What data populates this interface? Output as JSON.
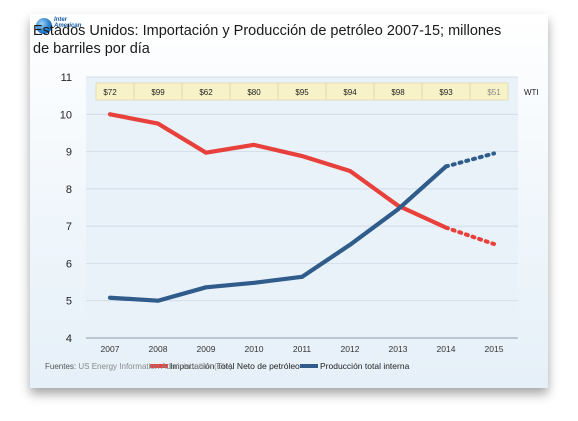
{
  "header": {
    "logo_text": "Inter\nAmerican",
    "title": "Estados Unidos: Importación y Producción de petróleo  2007-15; millones de barriles por día"
  },
  "source": {
    "label": "Fuentes:",
    "org": "US Energy Information Administration (EIA)"
  },
  "chart_data": {
    "type": "line",
    "title": "Estados Unidos: Importación y Producción de petróleo  2007-15; millones de barriles por día",
    "x": [
      "2007",
      "2008",
      "2009",
      "2010",
      "2011",
      "2012",
      "2013",
      "2014",
      "2015"
    ],
    "ylim": [
      4,
      11
    ],
    "yticks": [
      "4",
      "5",
      "6",
      "7",
      "8",
      "9",
      "10",
      "11"
    ],
    "grid": true,
    "legend_position": "bottom",
    "series": [
      {
        "name": "Importación Total Neto de petróleo",
        "color": "#e8403a",
        "values": [
          10.0,
          9.75,
          8.97,
          9.18,
          8.88,
          8.48,
          7.55,
          6.96,
          6.52
        ],
        "projected_from_index": 7
      },
      {
        "name": "Producción total interna",
        "color": "#2f5c8a",
        "values": [
          5.08,
          5.0,
          5.36,
          5.48,
          5.64,
          6.5,
          7.45,
          8.6,
          8.95
        ],
        "projected_from_index": 7
      }
    ],
    "wti_band": {
      "label": "WTI",
      "values": [
        "$72",
        "$99",
        "$62",
        "$80",
        "$95",
        "$94",
        "$98",
        "$93",
        "$51"
      ],
      "band_color": "#f7f2c8"
    }
  }
}
